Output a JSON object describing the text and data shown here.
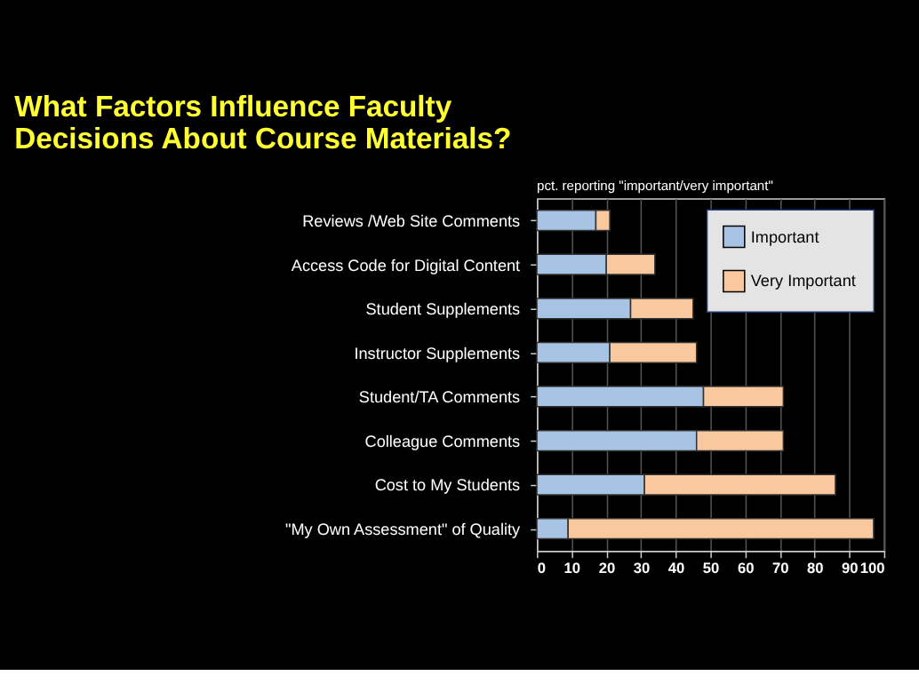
{
  "chart_data": {
    "type": "bar",
    "orientation": "horizontal",
    "stacked": true,
    "title": [
      "What Factors Influence Faculty",
      "Decisions About Course Materials?"
    ],
    "subtitle": "pct. reporting \"important/very important\"",
    "categories": [
      "Reviews /Web Site Comments",
      "Access Code for Digital Content",
      "Student Supplements",
      "Instructor Supplements",
      "Student/TA Comments",
      "Colleague Comments",
      "Cost to My Students",
      "\"My Own Assessment\" of Quality"
    ],
    "series": [
      {
        "name": "Important",
        "color": "#a8c4e4",
        "values": [
          17,
          20,
          27,
          21,
          48,
          46,
          31,
          9
        ]
      },
      {
        "name": "Very Important",
        "color": "#f9c89e",
        "values": [
          4,
          14,
          18,
          25,
          23,
          25,
          55,
          88
        ]
      }
    ],
    "xlim": [
      0,
      100
    ],
    "xticks": [
      0,
      10,
      20,
      30,
      40,
      50,
      60,
      70,
      80,
      90,
      100
    ],
    "grid": "x",
    "legend": "top right"
  }
}
